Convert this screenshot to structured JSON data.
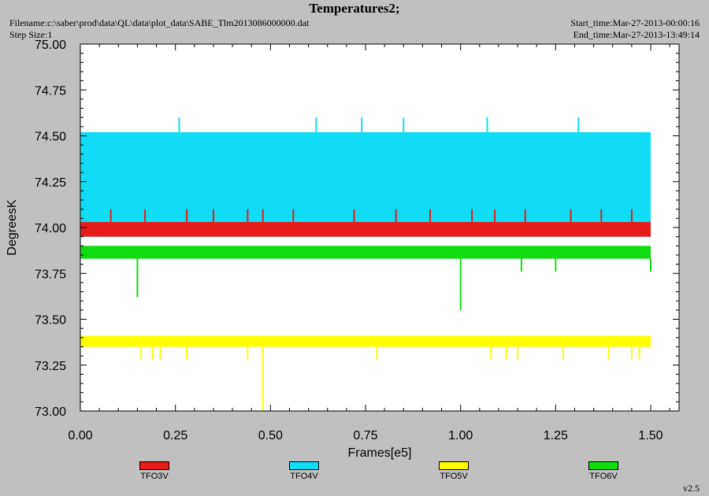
{
  "header": {
    "title": "Temperatures2;",
    "filename": "Filename:c:\\saber\\prod\\data\\QL\\data\\plot_data\\SABE_Tlm2013086000000.dat",
    "step_size": "Step Size:1",
    "start_time": "Start_time:Mar-27-2013-00:00:16",
    "end_time": "End_time:Mar-27-2013-13:49:14"
  },
  "version": "v2.5",
  "colors": {
    "background": "#c0c0c0",
    "plot_bg": "#ffffff",
    "TFO3V": "#e81b1b",
    "TFO4V": "#10dcf5",
    "TFO5V": "#ffff00",
    "TFO6V": "#10dc10"
  },
  "chart_data": {
    "type": "line",
    "title": "Temperatures2;",
    "xlabel": "Frames[e5]",
    "ylabel": "DegreesK",
    "xlim": [
      0.0,
      1.5
    ],
    "ylim": [
      73.0,
      75.0
    ],
    "x_ticks": [
      "0.00",
      "0.25",
      "0.50",
      "0.75",
      "1.00",
      "1.25",
      "1.50"
    ],
    "y_ticks": [
      "73.00",
      "73.25",
      "73.50",
      "73.75",
      "74.00",
      "74.25",
      "74.50",
      "74.75",
      "75.00"
    ],
    "legend_position": "bottom",
    "series": [
      {
        "name": "TFO3V",
        "color": "#e81b1b",
        "band": [
          73.95,
          74.03
        ],
        "spikes": [
          {
            "x": 0.08,
            "y": 74.1
          },
          {
            "x": 0.17,
            "y": 74.1
          },
          {
            "x": 0.28,
            "y": 74.1
          },
          {
            "x": 0.35,
            "y": 74.1
          },
          {
            "x": 0.44,
            "y": 74.1
          },
          {
            "x": 0.48,
            "y": 74.1
          },
          {
            "x": 0.56,
            "y": 74.1
          },
          {
            "x": 0.72,
            "y": 74.1
          },
          {
            "x": 0.83,
            "y": 74.1
          },
          {
            "x": 0.92,
            "y": 74.1
          },
          {
            "x": 1.03,
            "y": 74.1
          },
          {
            "x": 1.09,
            "y": 74.1
          },
          {
            "x": 1.17,
            "y": 74.1
          },
          {
            "x": 1.29,
            "y": 74.1
          },
          {
            "x": 1.37,
            "y": 74.1
          },
          {
            "x": 1.45,
            "y": 74.1
          }
        ]
      },
      {
        "name": "TFO4V",
        "color": "#10dcf5",
        "band": [
          73.95,
          74.52
        ],
        "spikes": [
          {
            "x": 0.26,
            "y": 74.6
          },
          {
            "x": 0.62,
            "y": 74.6
          },
          {
            "x": 0.74,
            "y": 74.6
          },
          {
            "x": 0.85,
            "y": 74.6
          },
          {
            "x": 1.07,
            "y": 74.6
          },
          {
            "x": 1.31,
            "y": 74.6
          }
        ]
      },
      {
        "name": "TFO5V",
        "color": "#ffff00",
        "band": [
          73.35,
          73.41
        ],
        "spikes": [
          {
            "x": 0.16,
            "y": 73.28
          },
          {
            "x": 0.19,
            "y": 73.28
          },
          {
            "x": 0.21,
            "y": 73.28
          },
          {
            "x": 0.28,
            "y": 73.28
          },
          {
            "x": 0.44,
            "y": 73.28
          },
          {
            "x": 0.48,
            "y": 73.0
          },
          {
            "x": 0.78,
            "y": 73.28
          },
          {
            "x": 1.08,
            "y": 73.28
          },
          {
            "x": 1.12,
            "y": 73.28
          },
          {
            "x": 1.15,
            "y": 73.28
          },
          {
            "x": 1.27,
            "y": 73.28
          },
          {
            "x": 1.39,
            "y": 73.28
          },
          {
            "x": 1.45,
            "y": 73.28
          },
          {
            "x": 1.47,
            "y": 73.28
          }
        ]
      },
      {
        "name": "TFO6V",
        "color": "#10dc10",
        "band": [
          73.83,
          73.9
        ],
        "spikes": [
          {
            "x": 0.15,
            "y": 73.62
          },
          {
            "x": 1.0,
            "y": 73.55
          },
          {
            "x": 1.16,
            "y": 73.76
          },
          {
            "x": 1.25,
            "y": 73.76
          },
          {
            "x": 1.5,
            "y": 73.76
          }
        ]
      }
    ]
  }
}
